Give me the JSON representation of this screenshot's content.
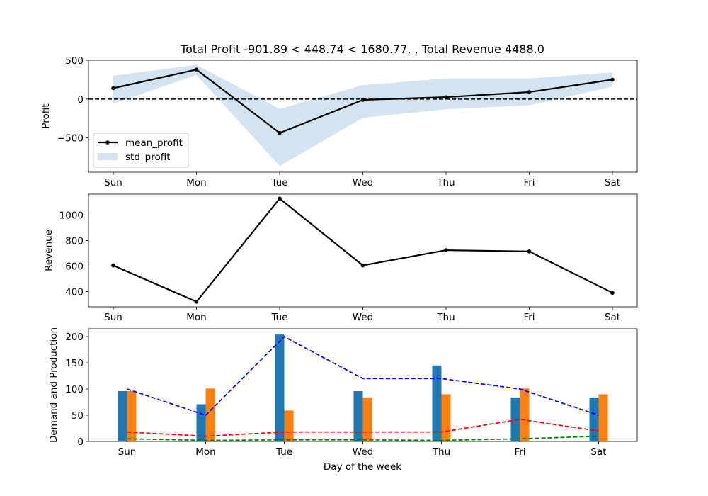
{
  "figure": {
    "title": "Total Profit -901.89 < 448.74 < 1680.77, , Total Revenue 4488.0",
    "xlabel": "Day of the week"
  },
  "colors": {
    "line": "#000000",
    "band": "#d3e3f0",
    "bar_demand": "#1f77b4",
    "bar_production": "#ff7f0e",
    "dash_blue": "#0000ff",
    "dash_red": "#ff0000",
    "dash_green": "#008000"
  },
  "chart_data": [
    {
      "type": "line",
      "panel": "profit",
      "categories": [
        "Sun",
        "Mon",
        "Tue",
        "Wed",
        "Thu",
        "Fri",
        "Sat"
      ],
      "title": "Total Profit -901.89 < 448.74 < 1680.77, , Total Revenue 4488.0",
      "ylabel": "Profit",
      "ylim": [
        -940,
        500
      ],
      "yticks": [
        500,
        0,
        -500
      ],
      "ytick_labels": [
        "500",
        "0",
        "−500"
      ],
      "reference_line": 0,
      "series": [
        {
          "name": "mean_profit",
          "values": [
            140,
            380,
            -435,
            -10,
            25,
            90,
            250
          ]
        }
      ],
      "band": {
        "name": "std_profit",
        "lower": [
          -60,
          310,
          -860,
          -240,
          -130,
          -80,
          160
        ],
        "upper": [
          300,
          440,
          -125,
          180,
          265,
          265,
          345
        ]
      },
      "legend": "lower-left"
    },
    {
      "type": "line",
      "panel": "revenue",
      "categories": [
        "Sun",
        "Mon",
        "Tue",
        "Wed",
        "Thu",
        "Fri",
        "Sat"
      ],
      "ylabel": "Revenue",
      "ylim": [
        280,
        1165
      ],
      "yticks": [
        400,
        600,
        800,
        1000
      ],
      "ytick_labels": [
        "400",
        "600",
        "800",
        "1000"
      ],
      "series": [
        {
          "values": [
            605,
            320,
            1130,
            605,
            725,
            715,
            390
          ]
        }
      ]
    },
    {
      "type": "bar",
      "panel": "demand",
      "categories": [
        "Sun",
        "Mon",
        "Tue",
        "Wed",
        "Thu",
        "Fri",
        "Sat"
      ],
      "ylabel": "Demand and Production",
      "xlabel": "Day of the week",
      "ylim": [
        0,
        215
      ],
      "yticks": [
        0,
        50,
        100,
        150,
        200
      ],
      "ytick_labels": [
        "0",
        "50",
        "100",
        "150",
        "200"
      ],
      "bars": [
        {
          "color_key": "bar_demand",
          "values": [
            96,
            71,
            204,
            96,
            145,
            84,
            84
          ]
        },
        {
          "color_key": "bar_production",
          "values": [
            96,
            101,
            59,
            84,
            90,
            101,
            90
          ]
        }
      ],
      "dashed_lines": [
        {
          "color_key": "dash_blue",
          "values": [
            100,
            50,
            200,
            120,
            120,
            100,
            50
          ]
        },
        {
          "color_key": "dash_red",
          "values": [
            18,
            10,
            18,
            18,
            18,
            42,
            20
          ]
        },
        {
          "color_key": "dash_green",
          "values": [
            5,
            2,
            3,
            3,
            2,
            5,
            10
          ]
        }
      ]
    }
  ]
}
